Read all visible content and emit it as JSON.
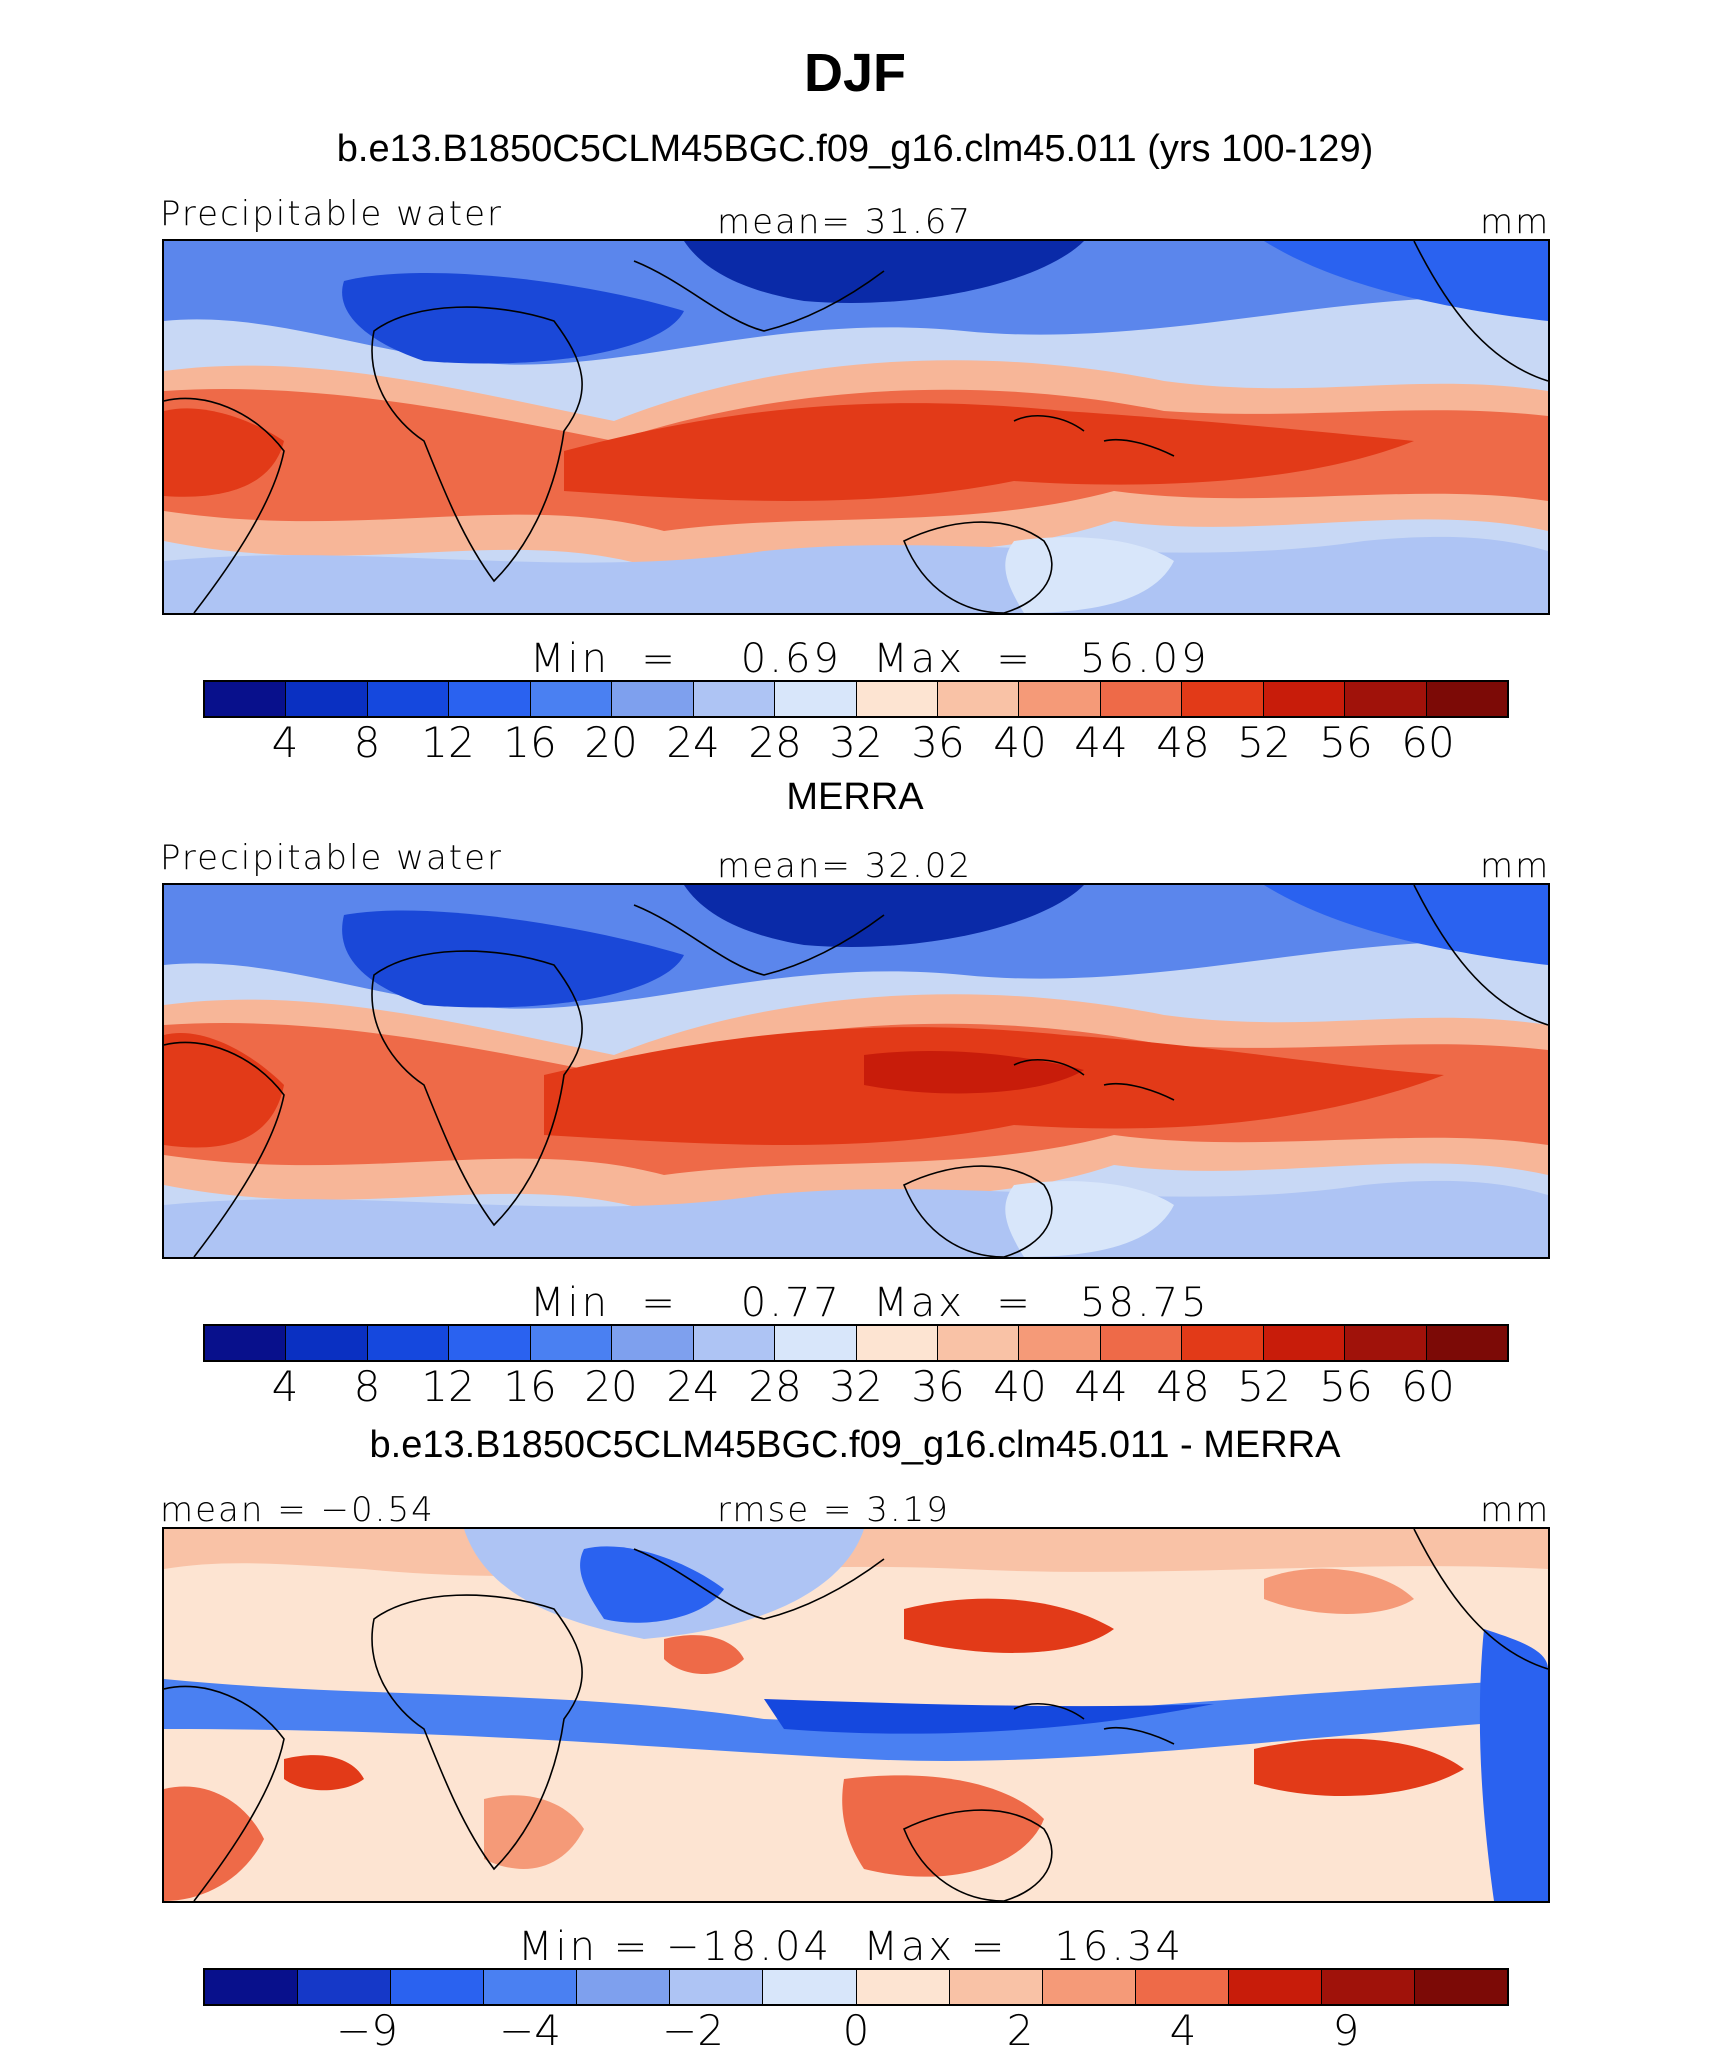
{
  "figure": {
    "title": "DJF",
    "season": "DJF"
  },
  "colors": {
    "palette": [
      "#08108c",
      "#0a30c2",
      "#1548de",
      "#2a62f0",
      "#4a80f2",
      "#7ea0ee",
      "#aec4f4",
      "#d8e6fa",
      "#fde4d2",
      "#f9c2a6",
      "#f59a78",
      "#ee6a48",
      "#e23a18",
      "#c81c0a",
      "#a0120a",
      "#7c0a06"
    ]
  },
  "panels": [
    {
      "title": "b.e13.B1850C5CLM45BGC.f09_g16.clm45.011 (yrs 100-129)",
      "left_label": "Precipitable water",
      "center_label": "mean=   31.67",
      "units": "mm",
      "min_max": "Min  =    0.69  Max  =   56.09",
      "colorbar_ticks": [
        "4",
        "8",
        "12",
        "16",
        "20",
        "24",
        "28",
        "32",
        "36",
        "40",
        "44",
        "48",
        "52",
        "56",
        "60"
      ]
    },
    {
      "title": "MERRA",
      "left_label": "Precipitable water",
      "center_label": "mean=   32.02",
      "units": "mm",
      "min_max": "Min  =    0.77  Max  =   58.75",
      "colorbar_ticks": [
        "4",
        "8",
        "12",
        "16",
        "20",
        "24",
        "28",
        "32",
        "36",
        "40",
        "44",
        "48",
        "52",
        "56",
        "60"
      ]
    },
    {
      "title": "b.e13.B1850C5CLM45BGC.f09_g16.clm45.011 - MERRA",
      "left_label": "mean =   −0.54",
      "center_label": "rmse =    3.19",
      "units": "mm",
      "min_max": "Min = −18.04  Max =   16.34",
      "colorbar_ticks": [
        "−9",
        "−4",
        "−2",
        "0",
        "2",
        "4",
        "9"
      ]
    }
  ]
}
